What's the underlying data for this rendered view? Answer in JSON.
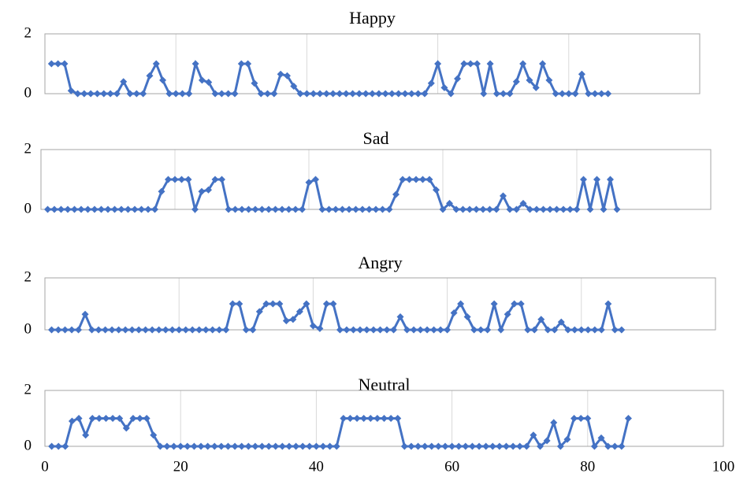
{
  "chart_data": [
    {
      "type": "line",
      "title": "Happy",
      "xlim": [
        0,
        100
      ],
      "xticks": [
        0,
        20,
        40,
        60,
        80,
        100
      ],
      "ylim": [
        0,
        2
      ],
      "yticks": [
        0,
        2
      ],
      "grid": true,
      "x": [
        1,
        2,
        3,
        4,
        5,
        6,
        7,
        8,
        9,
        10,
        11,
        12,
        13,
        14,
        15,
        16,
        17,
        18,
        19,
        20,
        21,
        22,
        23,
        24,
        25,
        26,
        27,
        28,
        29,
        30,
        31,
        32,
        33,
        34,
        35,
        36,
        37,
        38,
        39,
        40,
        41,
        42,
        43,
        44,
        45,
        46,
        47,
        48,
        49,
        50,
        51,
        52,
        53,
        54,
        55,
        56,
        57,
        58,
        59,
        60,
        61,
        62,
        63,
        64,
        65,
        66,
        67,
        68,
        69,
        70,
        71,
        72,
        73,
        74,
        75,
        76,
        77,
        78,
        79,
        80,
        81,
        82,
        83,
        84,
        85,
        86
      ],
      "series": [
        {
          "name": "Happy",
          "color": "#4472c4",
          "values": [
            1,
            1,
            1,
            0.1,
            0,
            0,
            0,
            0,
            0,
            0,
            0,
            0.4,
            0,
            0,
            0,
            0.6,
            1,
            0.45,
            0,
            0,
            0,
            0,
            1,
            0.45,
            0.38,
            0,
            0,
            0,
            0,
            1,
            1,
            0.35,
            0,
            0,
            0,
            0.65,
            0.6,
            0.25,
            0,
            0,
            0,
            0,
            0,
            0,
            0,
            0,
            0,
            0,
            0,
            0,
            0,
            0,
            0,
            0,
            0,
            0,
            0,
            0,
            0.35,
            1,
            0.2,
            0,
            0.5,
            1,
            1,
            1,
            0,
            1,
            0,
            0,
            0,
            0.4,
            1,
            0.45,
            0.2,
            1,
            0.45,
            0,
            0,
            0,
            0,
            0.65,
            0,
            0,
            0,
            0
          ]
        }
      ]
    },
    {
      "type": "line",
      "title": "Sad",
      "xlim": [
        0,
        100
      ],
      "xticks": [
        0,
        20,
        40,
        60,
        80,
        100
      ],
      "ylim": [
        0,
        2
      ],
      "yticks": [
        0,
        2
      ],
      "grid": true,
      "x": [
        1,
        2,
        3,
        4,
        5,
        6,
        7,
        8,
        9,
        10,
        11,
        12,
        13,
        14,
        15,
        16,
        17,
        18,
        19,
        20,
        21,
        22,
        23,
        24,
        25,
        26,
        27,
        28,
        29,
        30,
        31,
        32,
        33,
        34,
        35,
        36,
        37,
        38,
        39,
        40,
        41,
        42,
        43,
        44,
        45,
        46,
        47,
        48,
        49,
        50,
        51,
        52,
        53,
        54,
        55,
        56,
        57,
        58,
        59,
        60,
        61,
        62,
        63,
        64,
        65,
        66,
        67,
        68,
        69,
        70,
        71,
        72,
        73,
        74,
        75,
        76,
        77,
        78,
        79,
        80,
        81,
        82,
        83,
        84,
        85,
        86
      ],
      "series": [
        {
          "name": "Sad",
          "color": "#4472c4",
          "values": [
            0,
            0,
            0,
            0,
            0,
            0,
            0,
            0,
            0,
            0,
            0,
            0,
            0,
            0,
            0,
            0,
            0,
            0.6,
            1,
            1,
            1,
            1,
            0,
            0.6,
            0.65,
            1,
            1,
            0,
            0,
            0,
            0,
            0,
            0,
            0,
            0,
            0,
            0,
            0,
            0,
            0.9,
            1,
            0,
            0,
            0,
            0,
            0,
            0,
            0,
            0,
            0,
            0,
            0,
            0.5,
            1,
            1,
            1,
            1,
            1,
            0.65,
            0,
            0.2,
            0,
            0,
            0,
            0,
            0,
            0,
            0,
            0.45,
            0,
            0,
            0.2,
            0,
            0,
            0,
            0,
            0,
            0,
            0,
            0,
            1,
            0,
            1,
            0,
            1,
            0
          ]
        }
      ]
    },
    {
      "type": "line",
      "title": "Angry",
      "xlim": [
        0,
        100
      ],
      "xticks": [
        0,
        20,
        40,
        60,
        80,
        100
      ],
      "ylim": [
        0,
        2
      ],
      "yticks": [
        0,
        2
      ],
      "grid": true,
      "x": [
        1,
        2,
        3,
        4,
        5,
        6,
        7,
        8,
        9,
        10,
        11,
        12,
        13,
        14,
        15,
        16,
        17,
        18,
        19,
        20,
        21,
        22,
        23,
        24,
        25,
        26,
        27,
        28,
        29,
        30,
        31,
        32,
        33,
        34,
        35,
        36,
        37,
        38,
        39,
        40,
        41,
        42,
        43,
        44,
        45,
        46,
        47,
        48,
        49,
        50,
        51,
        52,
        53,
        54,
        55,
        56,
        57,
        58,
        59,
        60,
        61,
        62,
        63,
        64,
        65,
        66,
        67,
        68,
        69,
        70,
        71,
        72,
        73,
        74,
        75,
        76,
        77,
        78,
        79,
        80,
        81,
        82,
        83,
        84,
        85,
        86
      ],
      "series": [
        {
          "name": "Angry",
          "color": "#4472c4",
          "values": [
            0,
            0,
            0,
            0,
            0,
            0.6,
            0,
            0,
            0,
            0,
            0,
            0,
            0,
            0,
            0,
            0,
            0,
            0,
            0,
            0,
            0,
            0,
            0,
            0,
            0,
            0,
            0,
            1,
            1,
            0,
            0,
            0.7,
            1,
            1,
            1,
            0.35,
            0.4,
            0.7,
            1,
            0.15,
            0.05,
            1,
            1,
            0,
            0,
            0,
            0,
            0,
            0,
            0,
            0,
            0,
            0.5,
            0,
            0,
            0,
            0,
            0,
            0,
            0,
            0.65,
            1,
            0.5,
            0,
            0,
            0,
            1,
            0,
            0.6,
            1,
            1,
            0,
            0,
            0.4,
            0,
            0,
            0.3,
            0,
            0,
            0,
            0,
            0,
            0,
            1,
            0,
            0
          ]
        }
      ]
    },
    {
      "type": "line",
      "title": "Neutral",
      "xlim": [
        0,
        100
      ],
      "xticks": [
        0,
        20,
        40,
        60,
        80,
        100
      ],
      "ylim": [
        0,
        2
      ],
      "yticks": [
        0,
        2
      ],
      "grid": true,
      "x": [
        1,
        2,
        3,
        4,
        5,
        6,
        7,
        8,
        9,
        10,
        11,
        12,
        13,
        14,
        15,
        16,
        17,
        18,
        19,
        20,
        21,
        22,
        23,
        24,
        25,
        26,
        27,
        28,
        29,
        30,
        31,
        32,
        33,
        34,
        35,
        36,
        37,
        38,
        39,
        40,
        41,
        42,
        43,
        44,
        45,
        46,
        47,
        48,
        49,
        50,
        51,
        52,
        53,
        54,
        55,
        56,
        57,
        58,
        59,
        60,
        61,
        62,
        63,
        64,
        65,
        66,
        67,
        68,
        69,
        70,
        71,
        72,
        73,
        74,
        75,
        76,
        77,
        78,
        79,
        80,
        81,
        82,
        83,
        84,
        85,
        86
      ],
      "series": [
        {
          "name": "Neutral",
          "color": "#4472c4",
          "values": [
            0,
            0,
            0,
            0.9,
            1,
            0.4,
            1,
            1,
            1,
            1,
            1,
            0.65,
            1,
            1,
            1,
            0.4,
            0,
            0,
            0,
            0,
            0,
            0,
            0,
            0,
            0,
            0,
            0,
            0,
            0,
            0,
            0,
            0,
            0,
            0,
            0,
            0,
            0,
            0,
            0,
            0,
            0,
            0,
            0,
            1,
            1,
            1,
            1,
            1,
            1,
            1,
            1,
            1,
            0,
            0,
            0,
            0,
            0,
            0,
            0,
            0,
            0,
            0,
            0,
            0,
            0,
            0,
            0,
            0,
            0,
            0,
            0,
            0.4,
            0,
            0.2,
            0.85,
            0,
            0.25,
            1,
            1,
            1,
            0,
            0.3,
            0,
            0,
            0,
            1
          ]
        }
      ]
    }
  ]
}
